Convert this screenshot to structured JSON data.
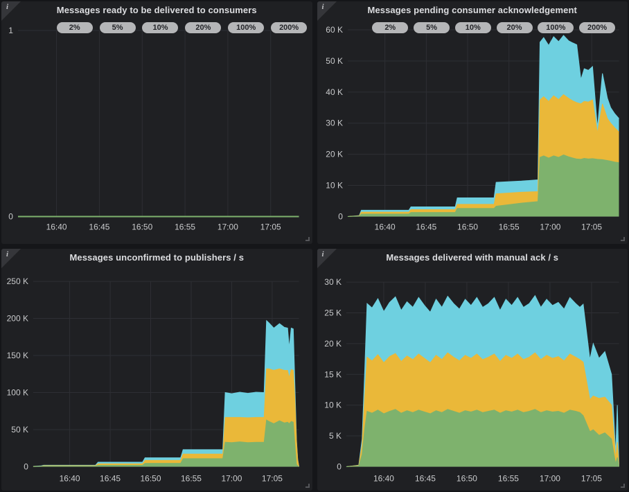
{
  "theme": {
    "page_background": "#151619",
    "panel_background": "#1f2023",
    "grid_color": "#2e2f34",
    "axis_text_color": "#c9cacc",
    "title_color": "#dcdde0",
    "badge_background": "#b5b6b8",
    "badge_text": "#232428",
    "series_green": "#7EB26D",
    "series_yellow": "#EAB839",
    "series_cyan": "#6ED0E0"
  },
  "panels": [
    {
      "title": "Messages ready to be delivered to consumers",
      "info_icon": "i"
    },
    {
      "title": "Messages pending consumer acknowledgement",
      "info_icon": "i"
    },
    {
      "title": "Messages unconfirmed to publishers / s",
      "info_icon": "i"
    },
    {
      "title": "Messages delivered with manual ack / s",
      "info_icon": "i"
    }
  ],
  "chart_data": [
    {
      "type": "area",
      "stacked": true,
      "title": "Messages ready to be delivered to consumers",
      "x_unit": "minutes after 16:00",
      "x_range": [
        35.5,
        68.3
      ],
      "x_ticks": {
        "values": [
          40,
          45,
          50,
          55,
          60,
          65
        ],
        "labels": [
          "16:40",
          "16:45",
          "16:50",
          "16:55",
          "17:00",
          "17:05"
        ]
      },
      "y_max": 1,
      "y_ticks": {
        "values": [
          0,
          1
        ],
        "labels": [
          "0",
          "1"
        ]
      },
      "line_width": 2,
      "annotations": [
        {
          "x": 40,
          "label": "2%"
        },
        {
          "x": 45,
          "label": "5%"
        },
        {
          "x": 50,
          "label": "10%"
        },
        {
          "x": 55,
          "label": "20%"
        },
        {
          "x": 60,
          "label": "100%"
        },
        {
          "x": 65,
          "label": "200%"
        }
      ],
      "x": [
        35.5,
        68.3
      ],
      "series": [
        {
          "name": "series-green",
          "color": "#7EB26D",
          "values": [
            0,
            0
          ]
        }
      ]
    },
    {
      "type": "area",
      "stacked": true,
      "title": "Messages pending consumer acknowledgement",
      "x_unit": "minutes after 16:00",
      "x_range": [
        35.5,
        68.3
      ],
      "x_ticks": {
        "values": [
          40,
          45,
          50,
          55,
          60,
          65
        ],
        "labels": [
          "16:40",
          "16:45",
          "16:50",
          "16:55",
          "17:00",
          "17:05"
        ]
      },
      "y_max": 60,
      "y_unit": "K",
      "y_ticks": {
        "values": [
          0,
          10,
          20,
          30,
          40,
          50,
          60
        ],
        "labels": [
          "0",
          "10 K",
          "20 K",
          "30 K",
          "40 K",
          "50 K",
          "60 K"
        ]
      },
      "line_width": 1,
      "annotations": [
        {
          "x": 40,
          "label": "2%"
        },
        {
          "x": 45,
          "label": "5%"
        },
        {
          "x": 50,
          "label": "10%"
        },
        {
          "x": 55,
          "label": "20%"
        },
        {
          "x": 60,
          "label": "100%"
        },
        {
          "x": 65,
          "label": "200%"
        }
      ],
      "x": [
        35.5,
        36.9,
        37.15,
        42.9,
        43.15,
        48.5,
        48.75,
        53.2,
        53.45,
        56.5,
        58.5,
        58.75,
        59.2,
        59.8,
        60.4,
        61.0,
        61.6,
        62.2,
        62.7,
        63.2,
        63.7,
        64.1,
        64.6,
        65.1,
        65.7,
        66.3,
        66.9,
        67.3,
        67.8,
        68.3
      ],
      "series": [
        {
          "name": "series-green",
          "color": "#7EB26D",
          "values": [
            0,
            0.1,
            0.8,
            0.8,
            1.3,
            1.3,
            2.6,
            2.6,
            3.3,
            4.3,
            4.8,
            19.0,
            19.5,
            18.8,
            19.5,
            19.0,
            19.8,
            19.2,
            18.8,
            18.5,
            18.4,
            18.7,
            18.5,
            18.6,
            18.4,
            18.3,
            18.0,
            17.8,
            17.5,
            17.3
          ]
        },
        {
          "name": "series-yellow",
          "color": "#EAB839",
          "values": [
            0,
            0.1,
            0.6,
            0.6,
            0.9,
            0.9,
            1.3,
            1.3,
            4.0,
            3.5,
            3.2,
            18.5,
            19.0,
            18.2,
            19.3,
            18.6,
            19.4,
            18.8,
            18.4,
            18.1,
            17.8,
            18.3,
            18.3,
            18.9,
            8.4,
            17.9,
            13.5,
            12.2,
            11.0,
            9.9
          ]
        },
        {
          "name": "series-cyan",
          "color": "#6ED0E0",
          "values": [
            0,
            0.1,
            0.6,
            0.6,
            0.9,
            0.9,
            2.1,
            2.1,
            3.7,
            3.6,
            3.8,
            18.5,
            19.0,
            18.0,
            19.0,
            18.6,
            19.0,
            18.5,
            18.6,
            18.6,
            7.8,
            10.5,
            10.2,
            10.7,
            1.7,
            9.8,
            6.5,
            5.0,
            4.5,
            4.3
          ]
        }
      ]
    },
    {
      "type": "area",
      "stacked": true,
      "title": "Messages unconfirmed to publishers / s",
      "x_unit": "minutes after 16:00",
      "x_range": [
        35.5,
        68.3
      ],
      "x_ticks": {
        "values": [
          40,
          45,
          50,
          55,
          60,
          65
        ],
        "labels": [
          "16:40",
          "16:45",
          "16:50",
          "16:55",
          "17:00",
          "17:05"
        ]
      },
      "y_max": 250,
      "y_unit": "K",
      "y_ticks": {
        "values": [
          0,
          50,
          100,
          150,
          200,
          250
        ],
        "labels": [
          "0",
          "50 K",
          "100 K",
          "150 K",
          "200 K",
          "250 K"
        ]
      },
      "line_width": 1,
      "annotations": null,
      "x": [
        35.5,
        36.5,
        36.8,
        43.2,
        43.5,
        49.0,
        49.3,
        53.7,
        54.0,
        58.9,
        59.2,
        60.0,
        61.0,
        62.0,
        63.0,
        64.0,
        64.3,
        64.6,
        65.2,
        65.9,
        66.5,
        66.9,
        67.1,
        67.35,
        67.6,
        67.8,
        68.0,
        68.15,
        68.3
      ],
      "series": [
        {
          "name": "series-green",
          "color": "#7EB26D",
          "values": [
            0.1,
            0.4,
            0.7,
            0.7,
            1.9,
            1.9,
            4.5,
            4.5,
            10.8,
            10.8,
            33.0,
            32.5,
            33.5,
            32.5,
            33.0,
            33.0,
            63.0,
            61.0,
            58.0,
            62.0,
            59.0,
            60.0,
            58.0,
            61.0,
            60.0,
            30.0,
            3.0,
            1.0,
            0
          ]
        },
        {
          "name": "series-yellow",
          "color": "#EAB839",
          "values": [
            0.1,
            0.3,
            0.6,
            0.6,
            1.9,
            1.9,
            4.0,
            4.0,
            6.2,
            6.2,
            33.5,
            34.0,
            33.0,
            33.5,
            33.5,
            33.5,
            69.0,
            71.0,
            72.0,
            70.0,
            71.0,
            70.0,
            62.0,
            70.0,
            70.0,
            62.0,
            30.0,
            8.0,
            0
          ]
        },
        {
          "name": "series-cyan",
          "color": "#6ED0E0",
          "values": [
            0.2,
            0.4,
            0.7,
            0.7,
            2.2,
            2.2,
            3.5,
            3.5,
            6.0,
            6.0,
            33.5,
            32.0,
            34.0,
            33.0,
            34.0,
            33.5,
            65.0,
            62.0,
            57.0,
            61.0,
            58.0,
            57.0,
            40.0,
            56.0,
            56.0,
            20.0,
            3.0,
            1.0,
            0
          ]
        }
      ]
    },
    {
      "type": "area",
      "stacked": true,
      "title": "Messages delivered with manual ack / s",
      "x_unit": "minutes after 16:00",
      "x_range": [
        35.5,
        68.3
      ],
      "x_ticks": {
        "values": [
          40,
          45,
          50,
          55,
          60,
          65
        ],
        "labels": [
          "16:40",
          "16:45",
          "16:50",
          "16:55",
          "17:00",
          "17:05"
        ]
      },
      "y_max": 30,
      "y_unit": "K",
      "y_ticks": {
        "values": [
          0,
          5,
          10,
          15,
          20,
          25,
          30
        ],
        "labels": [
          "0",
          "5 K",
          "10 K",
          "15 K",
          "20 K",
          "25 K",
          "30 K"
        ]
      },
      "line_width": 1,
      "annotations": null,
      "x": [
        35.5,
        37.0,
        37.4,
        37.7,
        38.0,
        38.6,
        39.3,
        40.0,
        40.7,
        41.4,
        42.1,
        42.8,
        43.5,
        44.2,
        44.9,
        45.6,
        46.3,
        47.0,
        47.7,
        48.4,
        49.1,
        49.8,
        50.5,
        51.2,
        51.9,
        52.6,
        53.3,
        54.0,
        54.7,
        55.4,
        56.1,
        56.8,
        57.5,
        58.2,
        58.9,
        59.6,
        60.3,
        61.0,
        61.7,
        62.4,
        63.1,
        63.6,
        64.0,
        64.8,
        65.2,
        65.9,
        66.6,
        67.4,
        67.7,
        67.9,
        68.1,
        68.3
      ],
      "series": [
        {
          "name": "series-green",
          "color": "#7EB26D",
          "values": [
            0,
            0.1,
            2.0,
            6.0,
            9.0,
            8.7,
            9.2,
            8.6,
            9.0,
            9.3,
            8.7,
            9.1,
            8.8,
            9.2,
            8.9,
            8.6,
            9.1,
            8.8,
            9.3,
            9.0,
            8.7,
            9.1,
            8.9,
            9.2,
            8.8,
            9.0,
            9.2,
            8.7,
            9.1,
            8.9,
            9.2,
            8.8,
            9.0,
            9.3,
            8.8,
            9.1,
            8.9,
            9.0,
            8.7,
            9.2,
            9.0,
            8.8,
            8.3,
            5.7,
            6.0,
            5.1,
            5.5,
            4.5,
            2.0,
            0.5,
            1.5,
            0
          ]
        },
        {
          "name": "series-yellow",
          "color": "#EAB839",
          "values": [
            0,
            0.1,
            1.5,
            5.0,
            8.8,
            8.5,
            9.0,
            8.3,
            8.9,
            9.1,
            8.4,
            8.9,
            8.6,
            9.1,
            8.7,
            8.3,
            9.0,
            8.6,
            9.2,
            8.8,
            8.5,
            9.0,
            8.7,
            9.1,
            8.6,
            8.8,
            9.1,
            8.4,
            9.0,
            8.7,
            9.1,
            8.6,
            8.8,
            9.2,
            8.6,
            9.0,
            8.7,
            8.9,
            8.5,
            9.1,
            8.8,
            8.6,
            8.7,
            5.2,
            5.5,
            6.0,
            5.8,
            5.5,
            3.0,
            0.8,
            2.5,
            0
          ]
        },
        {
          "name": "series-cyan",
          "color": "#6ED0E0",
          "values": [
            0,
            0.05,
            1.0,
            4.0,
            8.7,
            8.6,
            9.1,
            8.3,
            8.8,
            9.2,
            8.3,
            8.8,
            8.5,
            9.2,
            8.6,
            8.2,
            9.1,
            8.5,
            9.2,
            8.7,
            8.4,
            9.1,
            8.6,
            9.2,
            8.5,
            8.7,
            9.2,
            8.3,
            9.1,
            8.6,
            9.2,
            8.5,
            8.7,
            9.3,
            8.5,
            9.1,
            8.6,
            8.8,
            8.4,
            9.2,
            8.7,
            8.5,
            9.4,
            6.5,
            8.5,
            6.5,
            7.4,
            5.0,
            2.5,
            0.7,
            6.0,
            0
          ]
        }
      ]
    }
  ]
}
